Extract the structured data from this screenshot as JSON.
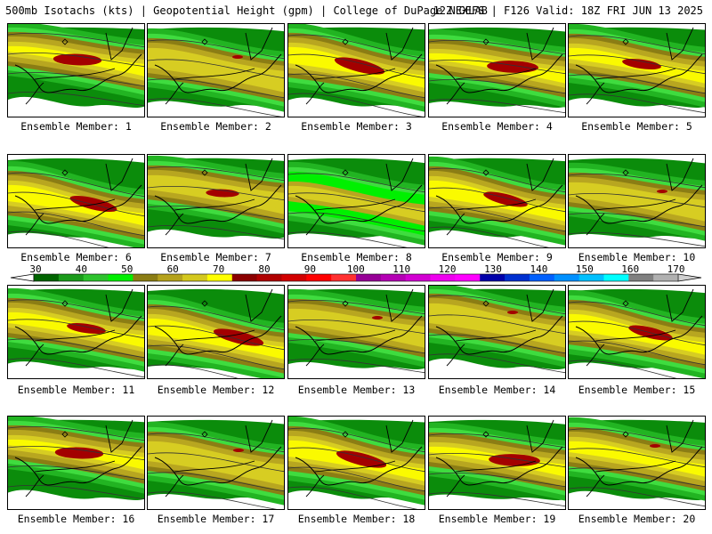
{
  "header": {
    "left": "500mb Isotachs (kts) | Geopotential Height (gpm) | College of DuPage NEXLAB",
    "right": "12Z GEFS | F126 Valid: 18Z FRI JUN 13 2025"
  },
  "panels": [
    {
      "label": "Ensemble Member: 1",
      "core": 80,
      "jet_level": 0.8
    },
    {
      "label": "Ensemble Member: 2",
      "core": 70,
      "jet_level": 0.55
    },
    {
      "label": "Ensemble Member: 3",
      "core": 80,
      "jet_level": 0.85
    },
    {
      "label": "Ensemble Member: 4",
      "core": 80,
      "jet_level": 0.85
    },
    {
      "label": "Ensemble Member: 5",
      "core": 80,
      "jet_level": 0.65
    },
    {
      "label": "Ensemble Member: 6",
      "core": 80,
      "jet_level": 0.8
    },
    {
      "label": "Ensemble Member: 7",
      "core": 80,
      "jet_level": 0.55
    },
    {
      "label": "Ensemble Member: 8",
      "core": 60,
      "jet_level": 0.45
    },
    {
      "label": "Ensemble Member: 9",
      "core": 80,
      "jet_level": 0.75
    },
    {
      "label": "Ensemble Member: 10",
      "core": 70,
      "jet_level": 0.55
    },
    {
      "label": "Ensemble Member: 11",
      "core": 80,
      "jet_level": 0.65
    },
    {
      "label": "Ensemble Member: 12",
      "core": 80,
      "jet_level": 0.85
    },
    {
      "label": "Ensemble Member: 13",
      "core": 70,
      "jet_level": 0.55
    },
    {
      "label": "Ensemble Member: 14",
      "core": 70,
      "jet_level": 0.55
    },
    {
      "label": "Ensemble Member: 15",
      "core": 80,
      "jet_level": 0.75
    },
    {
      "label": "Ensemble Member: 16",
      "core": 80,
      "jet_level": 0.8
    },
    {
      "label": "Ensemble Member: 17",
      "core": 70,
      "jet_level": 0.55
    },
    {
      "label": "Ensemble Member: 18",
      "core": 80,
      "jet_level": 0.85
    },
    {
      "label": "Ensemble Member: 19",
      "core": 80,
      "jet_level": 0.85
    },
    {
      "label": "Ensemble Member: 20",
      "core": 70,
      "jet_level": 0.6
    }
  ],
  "colorbar": {
    "labels": [
      "30",
      "40",
      "50",
      "60",
      "70",
      "80",
      "90",
      "100",
      "110",
      "120",
      "130",
      "140",
      "150",
      "160",
      "170"
    ],
    "colors": [
      "#006400",
      "#1a9a1a",
      "#2dc22d",
      "#00ee00",
      "#8b7d14",
      "#b5a21c",
      "#d4c81e",
      "#ffff00",
      "#8b0000",
      "#b00000",
      "#d20000",
      "#ff0000",
      "#ff3030",
      "#960096",
      "#b400b4",
      "#d200d2",
      "#ee00ee",
      "#ff00ff",
      "#0000aa",
      "#0030d0",
      "#0060ff",
      "#0090ff",
      "#00c0ff",
      "#00ffff",
      "#808080",
      "#b0b0b0"
    ]
  },
  "icons": {
    "marker": "diamond-icon"
  }
}
